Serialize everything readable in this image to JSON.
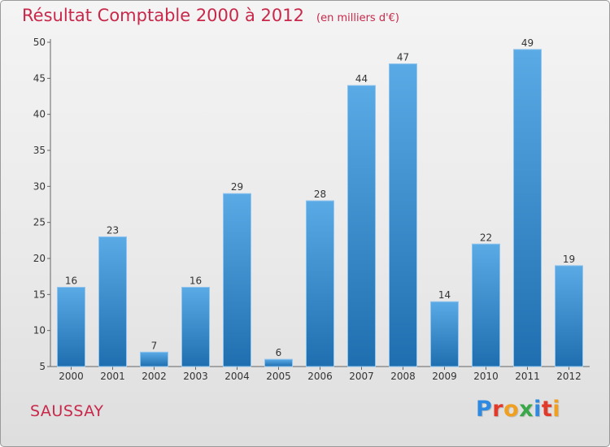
{
  "header": {
    "title": "Résultat Comptable 2000 à 2012",
    "subtitle": "(en milliers d'€)"
  },
  "commune": "SAUSSAY",
  "logo": {
    "text": "Proxiti",
    "colors": [
      "#2e8ae0",
      "#e23a2a",
      "#f0a020",
      "#3aa84a",
      "#2e8ae0",
      "#e23a2a",
      "#f0a020"
    ]
  },
  "chart_data": {
    "type": "bar",
    "categories": [
      "2000",
      "2001",
      "2002",
      "2003",
      "2004",
      "2005",
      "2006",
      "2007",
      "2008",
      "2009",
      "2010",
      "2011",
      "2012"
    ],
    "values": [
      16,
      23,
      7,
      16,
      29,
      6,
      28,
      44,
      47,
      14,
      22,
      49,
      19
    ],
    "ylim": [
      5,
      50
    ],
    "yticks": [
      5,
      10,
      15,
      20,
      25,
      30,
      35,
      40,
      45,
      50
    ],
    "grid": false,
    "bar_color_top": "#5aaae6",
    "bar_color_bottom": "#1f6fb0"
  }
}
